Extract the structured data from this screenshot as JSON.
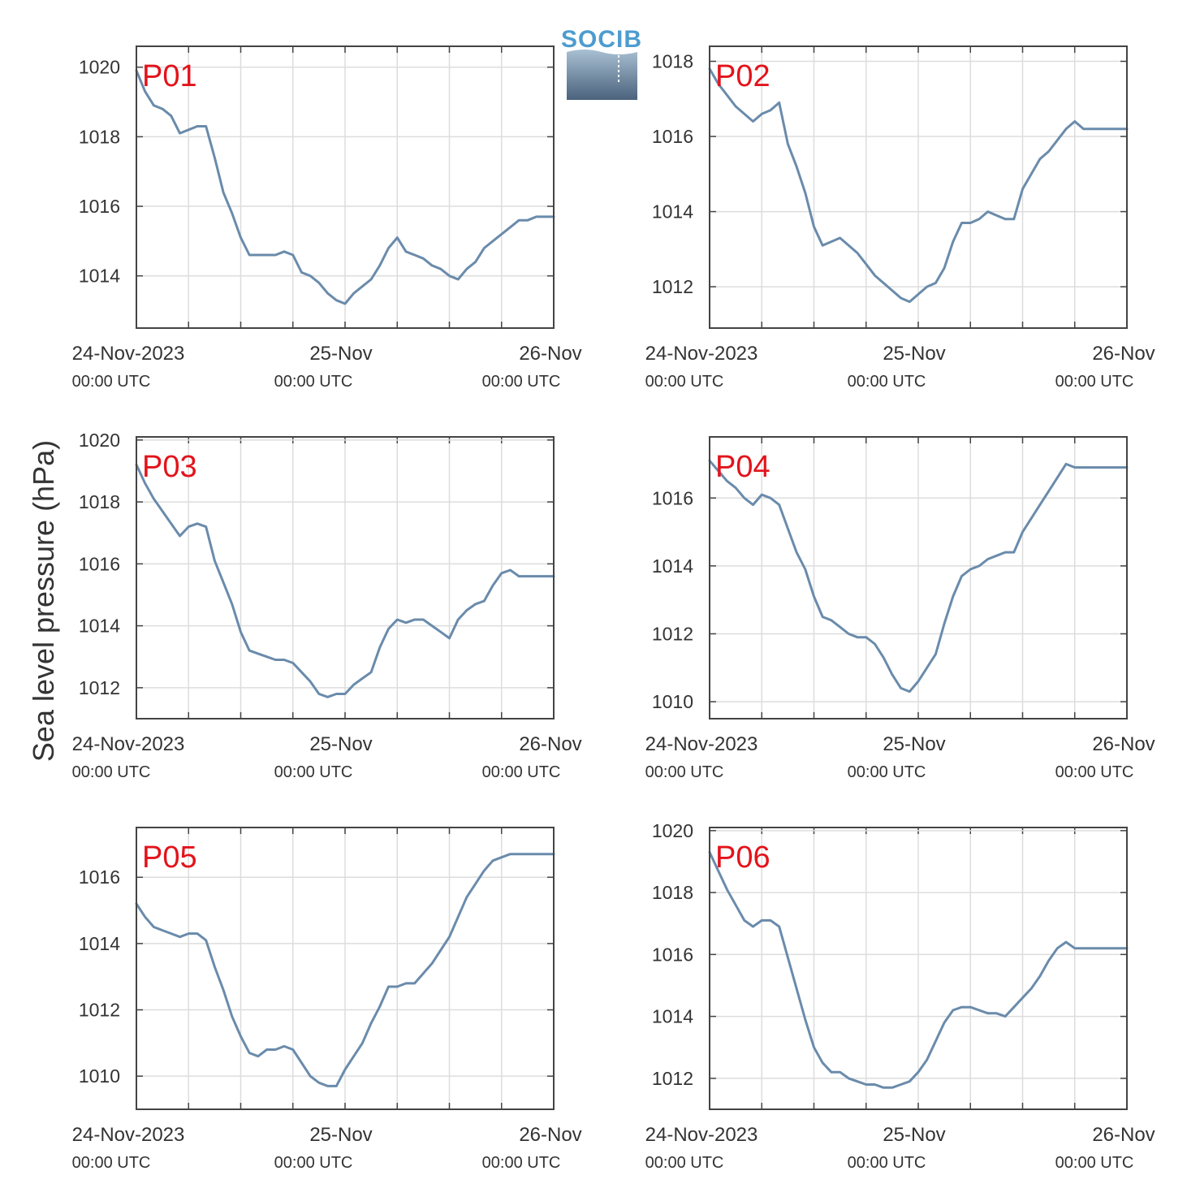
{
  "logo": {
    "text": "SOCIB"
  },
  "colors": {
    "line": "#6a8bab",
    "label": "#e3131b",
    "grid": "#dddddd",
    "axis": "#444444"
  },
  "chart_data": {
    "type": "line",
    "ylabel": "Sea level pressure (hPa)",
    "x_ticks": [
      {
        "main": "24-Nov-2023",
        "sub": "00:00 UTC"
      },
      {
        "main": "25-Nov",
        "sub": "00:00 UTC"
      },
      {
        "main": "26-Nov",
        "sub": "00:00 UTC"
      }
    ],
    "x_start": "24-Nov-2023 00:00 UTC",
    "x_end": "26-Nov-2023 00:00 UTC",
    "x_gridlines": [
      "24-Nov 00:00",
      "24-Nov 06:00",
      "24-Nov 12:00",
      "24-Nov 18:00",
      "25-Nov 00:00",
      "25-Nov 06:00",
      "25-Nov 12:00",
      "25-Nov 18:00",
      "26-Nov 00:00"
    ],
    "panels": [
      {
        "name": "P01",
        "ylim": [
          1012.5,
          1020.6
        ],
        "yticks": [
          1014,
          1016,
          1018,
          1020
        ],
        "x_hours": [
          0,
          1,
          2,
          3,
          4,
          5,
          6,
          7,
          8,
          9,
          10,
          11,
          12,
          13,
          14,
          15,
          16,
          17,
          18,
          19,
          20,
          21,
          22,
          23,
          24,
          25,
          26,
          27,
          28,
          29,
          30,
          31,
          32,
          33,
          34,
          35,
          36,
          37,
          38,
          39,
          40,
          41,
          42,
          43,
          44,
          45,
          46,
          47,
          48
        ],
        "values": [
          1019.9,
          1019.3,
          1018.9,
          1018.8,
          1018.6,
          1018.1,
          1018.2,
          1018.3,
          1018.3,
          1017.4,
          1016.4,
          1015.8,
          1015.1,
          1014.6,
          1014.6,
          1014.6,
          1014.6,
          1014.7,
          1014.6,
          1014.1,
          1014.0,
          1013.8,
          1013.5,
          1013.3,
          1013.2,
          1013.5,
          1013.7,
          1013.9,
          1014.3,
          1014.8,
          1015.1,
          1014.7,
          1014.6,
          1014.5,
          1014.3,
          1014.2,
          1014.0,
          1013.9,
          1014.2,
          1014.4,
          1014.8,
          1015.0,
          1015.2,
          1015.4,
          1015.6,
          1015.6,
          1015.7,
          1015.7,
          1015.7
        ]
      },
      {
        "name": "P02",
        "ylim": [
          1010.9,
          1018.4
        ],
        "yticks": [
          1012,
          1014,
          1016,
          1018
        ],
        "x_hours": [
          0,
          1,
          2,
          3,
          4,
          5,
          6,
          7,
          8,
          9,
          10,
          11,
          12,
          13,
          14,
          15,
          16,
          17,
          18,
          19,
          20,
          21,
          22,
          23,
          24,
          25,
          26,
          27,
          28,
          29,
          30,
          31,
          32,
          33,
          34,
          35,
          36,
          37,
          38,
          39,
          40,
          41,
          42,
          43,
          44,
          45,
          46,
          47,
          48
        ],
        "values": [
          1017.8,
          1017.4,
          1017.1,
          1016.8,
          1016.6,
          1016.4,
          1016.6,
          1016.7,
          1016.9,
          1015.8,
          1015.2,
          1014.5,
          1013.6,
          1013.1,
          1013.2,
          1013.3,
          1013.1,
          1012.9,
          1012.6,
          1012.3,
          1012.1,
          1011.9,
          1011.7,
          1011.6,
          1011.8,
          1012.0,
          1012.1,
          1012.5,
          1013.2,
          1013.7,
          1013.7,
          1013.8,
          1014.0,
          1013.9,
          1013.8,
          1013.8,
          1014.6,
          1015.0,
          1015.4,
          1015.6,
          1015.9,
          1016.2,
          1016.4,
          1016.2,
          1016.2,
          1016.2,
          1016.2,
          1016.2,
          1016.2
        ]
      },
      {
        "name": "P03",
        "ylim": [
          1011.0,
          1020.1
        ],
        "yticks": [
          1012,
          1014,
          1016,
          1018,
          1020
        ],
        "x_hours": [
          0,
          1,
          2,
          3,
          4,
          5,
          6,
          7,
          8,
          9,
          10,
          11,
          12,
          13,
          14,
          15,
          16,
          17,
          18,
          19,
          20,
          21,
          22,
          23,
          24,
          25,
          26,
          27,
          28,
          29,
          30,
          31,
          32,
          33,
          34,
          35,
          36,
          37,
          38,
          39,
          40,
          41,
          42,
          43,
          44,
          45,
          46,
          47,
          48
        ],
        "values": [
          1019.2,
          1018.6,
          1018.1,
          1017.7,
          1017.3,
          1016.9,
          1017.2,
          1017.3,
          1017.2,
          1016.1,
          1015.4,
          1014.7,
          1013.8,
          1013.2,
          1013.1,
          1013.0,
          1012.9,
          1012.9,
          1012.8,
          1012.5,
          1012.2,
          1011.8,
          1011.7,
          1011.8,
          1011.8,
          1012.1,
          1012.3,
          1012.5,
          1013.3,
          1013.9,
          1014.2,
          1014.1,
          1014.2,
          1014.2,
          1014.0,
          1013.8,
          1013.6,
          1014.2,
          1014.5,
          1014.7,
          1014.8,
          1015.3,
          1015.7,
          1015.8,
          1015.6,
          1015.6,
          1015.6,
          1015.6,
          1015.6
        ]
      },
      {
        "name": "P04",
        "ylim": [
          1009.5,
          1017.8
        ],
        "yticks": [
          1010,
          1012,
          1014,
          1016
        ],
        "x_hours": [
          0,
          1,
          2,
          3,
          4,
          5,
          6,
          7,
          8,
          9,
          10,
          11,
          12,
          13,
          14,
          15,
          16,
          17,
          18,
          19,
          20,
          21,
          22,
          23,
          24,
          25,
          26,
          27,
          28,
          29,
          30,
          31,
          32,
          33,
          34,
          35,
          36,
          37,
          38,
          39,
          40,
          41,
          42,
          43,
          44,
          45,
          46,
          47,
          48
        ],
        "values": [
          1017.1,
          1016.8,
          1016.5,
          1016.3,
          1016.0,
          1015.8,
          1016.1,
          1016.0,
          1015.8,
          1015.1,
          1014.4,
          1013.9,
          1013.1,
          1012.5,
          1012.4,
          1012.2,
          1012.0,
          1011.9,
          1011.9,
          1011.7,
          1011.3,
          1010.8,
          1010.4,
          1010.3,
          1010.6,
          1011.0,
          1011.4,
          1012.3,
          1013.1,
          1013.7,
          1013.9,
          1014.0,
          1014.2,
          1014.3,
          1014.4,
          1014.4,
          1015.0,
          1015.4,
          1015.8,
          1016.2,
          1016.6,
          1017.0,
          1016.9,
          1016.9,
          1016.9,
          1016.9,
          1016.9,
          1016.9,
          1016.9
        ]
      },
      {
        "name": "P05",
        "ylim": [
          1009.0,
          1017.5
        ],
        "yticks": [
          1010,
          1012,
          1014,
          1016
        ],
        "x_hours": [
          0,
          1,
          2,
          3,
          4,
          5,
          6,
          7,
          8,
          9,
          10,
          11,
          12,
          13,
          14,
          15,
          16,
          17,
          18,
          19,
          20,
          21,
          22,
          23,
          24,
          25,
          26,
          27,
          28,
          29,
          30,
          31,
          32,
          33,
          34,
          35,
          36,
          37,
          38,
          39,
          40,
          41,
          42,
          43,
          44,
          45,
          46,
          47,
          48
        ],
        "values": [
          1015.2,
          1014.8,
          1014.5,
          1014.4,
          1014.3,
          1014.2,
          1014.3,
          1014.3,
          1014.1,
          1013.3,
          1012.6,
          1011.8,
          1011.2,
          1010.7,
          1010.6,
          1010.8,
          1010.8,
          1010.9,
          1010.8,
          1010.4,
          1010.0,
          1009.8,
          1009.7,
          1009.7,
          1010.2,
          1010.6,
          1011.0,
          1011.6,
          1012.1,
          1012.7,
          1012.7,
          1012.8,
          1012.8,
          1013.1,
          1013.4,
          1013.8,
          1014.2,
          1014.8,
          1015.4,
          1015.8,
          1016.2,
          1016.5,
          1016.6,
          1016.7,
          1016.7,
          1016.7,
          1016.7,
          1016.7,
          1016.7
        ]
      },
      {
        "name": "P06",
        "ylim": [
          1011.0,
          1020.1
        ],
        "yticks": [
          1012,
          1014,
          1016,
          1018,
          1020
        ],
        "x_hours": [
          0,
          1,
          2,
          3,
          4,
          5,
          6,
          7,
          8,
          9,
          10,
          11,
          12,
          13,
          14,
          15,
          16,
          17,
          18,
          19,
          20,
          21,
          22,
          23,
          24,
          25,
          26,
          27,
          28,
          29,
          30,
          31,
          32,
          33,
          34,
          35,
          36,
          37,
          38,
          39,
          40,
          41,
          42,
          43,
          44,
          45,
          46,
          47,
          48
        ],
        "values": [
          1019.3,
          1018.7,
          1018.1,
          1017.6,
          1017.1,
          1016.9,
          1017.1,
          1017.1,
          1016.9,
          1015.9,
          1014.9,
          1013.9,
          1013.0,
          1012.5,
          1012.2,
          1012.2,
          1012.0,
          1011.9,
          1011.8,
          1011.8,
          1011.7,
          1011.7,
          1011.8,
          1011.9,
          1012.2,
          1012.6,
          1013.2,
          1013.8,
          1014.2,
          1014.3,
          1014.3,
          1014.2,
          1014.1,
          1014.1,
          1014.0,
          1014.3,
          1014.6,
          1014.9,
          1015.3,
          1015.8,
          1016.2,
          1016.4,
          1016.2,
          1016.2,
          1016.2,
          1016.2,
          1016.2,
          1016.2,
          1016.2
        ]
      }
    ]
  }
}
